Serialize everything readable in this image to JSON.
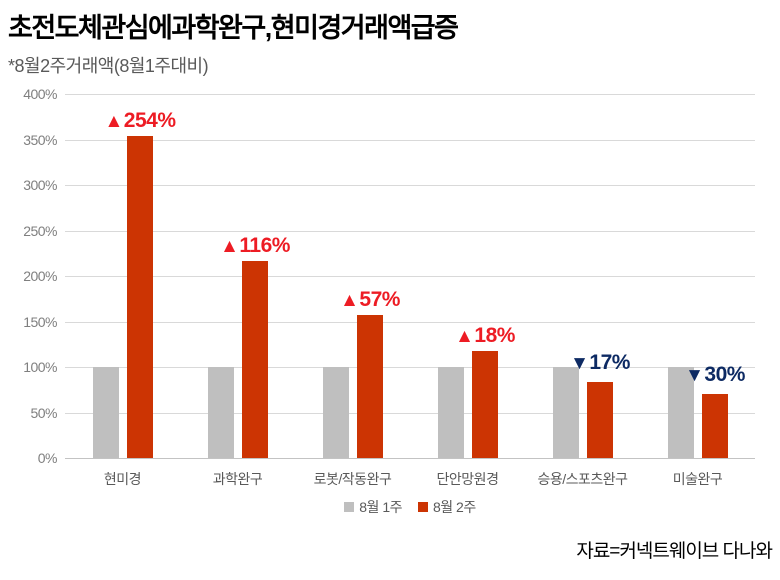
{
  "title": "초전도체관심에과학완구,현미경거래액급증",
  "subtitle": "*8월2주거래액(8월1주대비)",
  "source": "자료=커넥트웨이브 다나와",
  "colors": {
    "bar_week1": "#bfbfbf",
    "bar_week2": "#cc3403",
    "annotation_up": "#ed1c24",
    "annotation_down": "#0d2a63",
    "gridline": "#d9d9d9",
    "axis_label": "#7f7f7f",
    "category_label": "#595959"
  },
  "chart_data": {
    "type": "bar",
    "title": "초전도체관심에과학완구,현미경거래액급증",
    "subtitle": "*8월2주거래액(8월1주대비)",
    "categories": [
      "현미경",
      "과학완구",
      "로봇/작동완구",
      "단안망원경",
      "승용/스포츠완구",
      "미술완구"
    ],
    "series": [
      {
        "name": "8월 1주",
        "color": "#bfbfbf",
        "values": [
          100,
          100,
          100,
          100,
          100,
          100
        ]
      },
      {
        "name": "8월 2주",
        "color": "#cc3403",
        "values": [
          354,
          216,
          157,
          118,
          83,
          70
        ]
      }
    ],
    "annotations": [
      {
        "symbol": "▲",
        "value": "254%",
        "direction": "up"
      },
      {
        "symbol": "▲",
        "value": "116%",
        "direction": "up"
      },
      {
        "symbol": "▲",
        "value": "57%",
        "direction": "up"
      },
      {
        "symbol": "▲",
        "value": "18%",
        "direction": "up"
      },
      {
        "symbol": "▼",
        "value": "17%",
        "direction": "down"
      },
      {
        "symbol": "▼",
        "value": "30%",
        "direction": "down"
      }
    ],
    "annotation_colors": {
      "up": "#ed1c24",
      "down": "#0d2a63"
    },
    "ylim": [
      0,
      400
    ],
    "yticks": [
      "0%",
      "50%",
      "100%",
      "150%",
      "200%",
      "250%",
      "300%",
      "350%",
      "400%"
    ],
    "xlabel": "",
    "ylabel": "",
    "grid": true,
    "legend_position": "bottom",
    "source": "자료=커넥트웨이브 다나와"
  }
}
